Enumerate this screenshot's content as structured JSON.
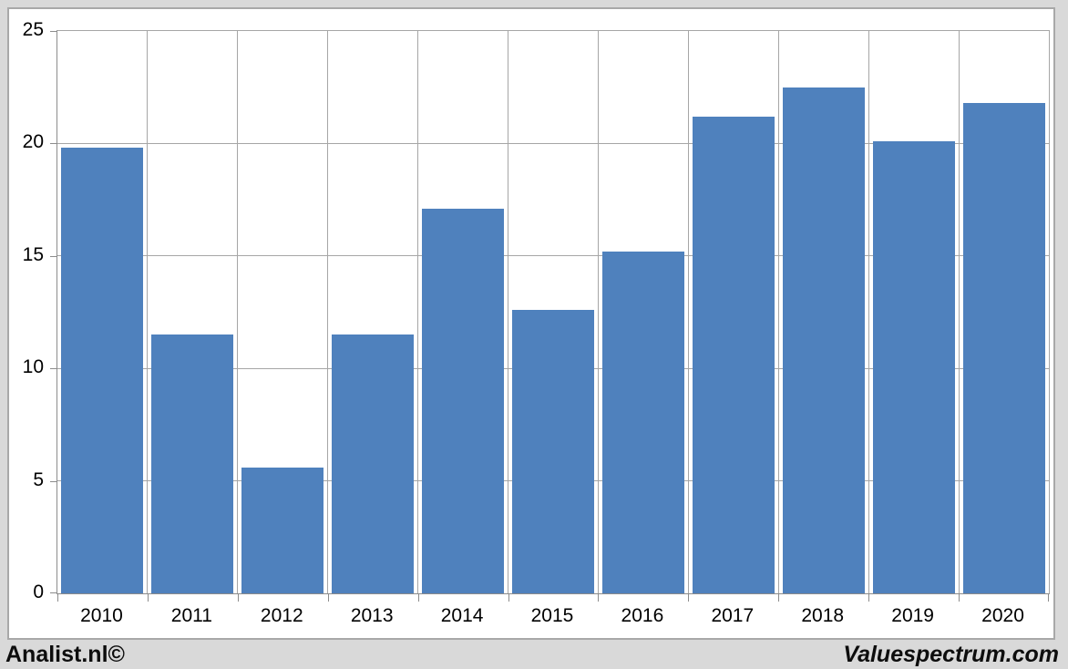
{
  "page": {
    "background_color": "#D9D9D9",
    "chart_background_color": "#FFFFFF"
  },
  "footer": {
    "left_text": "Analist.nl©",
    "right_text": "Valuespectrum.com"
  },
  "chart_data": {
    "type": "bar",
    "title": "",
    "categories": [
      "2010",
      "2011",
      "2012",
      "2013",
      "2014",
      "2015",
      "2016",
      "2017",
      "2018",
      "2019",
      "2020"
    ],
    "values": [
      19.8,
      11.5,
      5.6,
      11.5,
      17.1,
      12.6,
      15.2,
      21.2,
      22.5,
      20.1,
      21.8
    ],
    "xlabel": "",
    "ylabel": "",
    "ylim": [
      0,
      25
    ],
    "yticks": [
      0,
      5,
      10,
      15,
      20,
      25
    ],
    "grid": true,
    "legend_position": "none",
    "bar_color": "#4F81BD",
    "gridline_color": "#A6A6A6",
    "axis_color": "#8C8C8C",
    "tick_label_color": "#000000"
  }
}
